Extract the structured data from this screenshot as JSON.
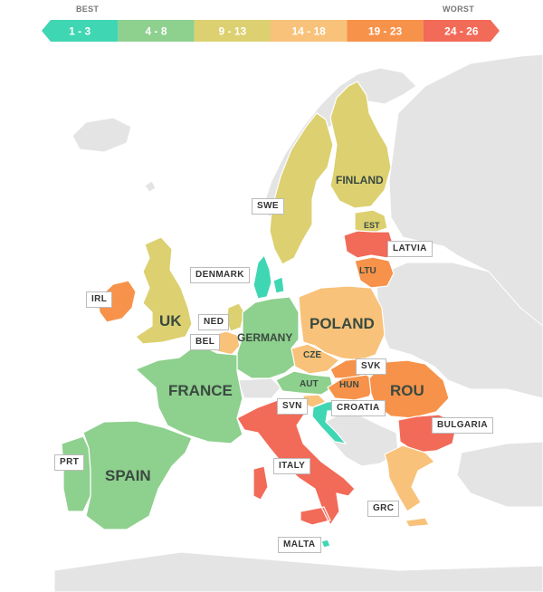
{
  "legend": {
    "best_label": "BEST",
    "worst_label": "WORST",
    "bins": [
      {
        "label": "1 - 3",
        "color": "#3fd6b3"
      },
      {
        "label": "4 - 8",
        "color": "#8ed08e"
      },
      {
        "label": "9 - 13",
        "color": "#dcd070"
      },
      {
        "label": "14 - 18",
        "color": "#f8c27a"
      },
      {
        "label": "19 - 23",
        "color": "#f7924a"
      },
      {
        "label": "24 - 26",
        "color": "#f26a58"
      }
    ]
  },
  "colors": {
    "non_eu": "#e4e4e4",
    "border": "#ffffff"
  },
  "countries": {
    "finland": {
      "label": "FINLAND",
      "bin": 2
    },
    "sweden": {
      "label": "SWE",
      "bin": 2
    },
    "estonia": {
      "label": "EST",
      "bin": 2
    },
    "latvia": {
      "label": "LATVIA",
      "bin": 5
    },
    "lithuania": {
      "label": "LTU",
      "bin": 4
    },
    "denmark": {
      "label": "DENMARK",
      "bin": 0
    },
    "ireland": {
      "label": "IRL",
      "bin": 4
    },
    "uk": {
      "label": "UK",
      "bin": 2
    },
    "netherlands": {
      "label": "NED",
      "bin": 2
    },
    "belgium": {
      "label": "BEL",
      "bin": 3
    },
    "germany": {
      "label": "GERMANY",
      "bin": 1
    },
    "poland": {
      "label": "POLAND",
      "bin": 3
    },
    "czechia": {
      "label": "CZE",
      "bin": 3
    },
    "slovakia": {
      "label": "SVK",
      "bin": 4
    },
    "austria": {
      "label": "AUT",
      "bin": 1
    },
    "hungary": {
      "label": "HUN",
      "bin": 4
    },
    "romania": {
      "label": "ROU",
      "bin": 4
    },
    "slovenia": {
      "label": "SVN",
      "bin": 3
    },
    "croatia": {
      "label": "CROATIA",
      "bin": 0
    },
    "bulgaria": {
      "label": "BULGARIA",
      "bin": 5
    },
    "france": {
      "label": "FRANCE",
      "bin": 1
    },
    "spain": {
      "label": "SPAIN",
      "bin": 1
    },
    "portugal": {
      "label": "PRT",
      "bin": 1
    },
    "italy": {
      "label": "ITALY",
      "bin": 5
    },
    "greece": {
      "label": "GRC",
      "bin": 3
    },
    "malta": {
      "label": "MALTA",
      "bin": 0
    }
  }
}
